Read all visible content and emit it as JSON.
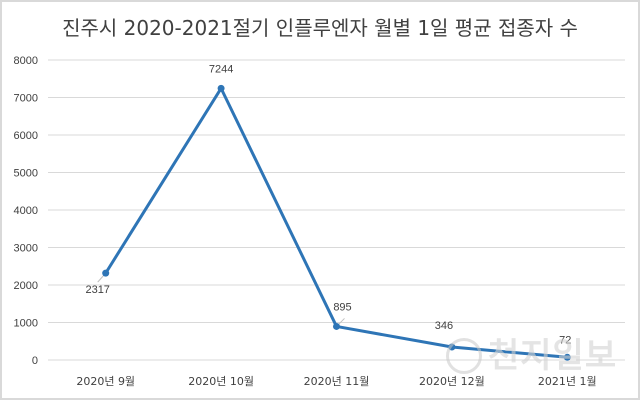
{
  "chart_data": {
    "type": "line",
    "title": "진주시 2020-2021절기 인플루엔자 월별 1일 평균 접종자 수",
    "categories": [
      "2020년 9월",
      "2020년 10월",
      "2020년 11월",
      "2020년 12월",
      "2021년 1월"
    ],
    "series": [
      {
        "name": "1일 평균 접종자 수",
        "values": [
          2317,
          7244,
          895,
          346,
          72
        ],
        "color": "#2e75b6"
      }
    ],
    "data_labels": [
      "2317",
      "7244",
      "895",
      "346",
      "72"
    ],
    "xlabel": "",
    "ylabel": "",
    "ylim": [
      0,
      8000
    ],
    "yticks": [
      "8000",
      "7000",
      "6000",
      "5000",
      "4000",
      "3000",
      "2000",
      "1000",
      "0"
    ],
    "grid": true,
    "legend": "none"
  },
  "watermark": {
    "text": "천지일보"
  }
}
